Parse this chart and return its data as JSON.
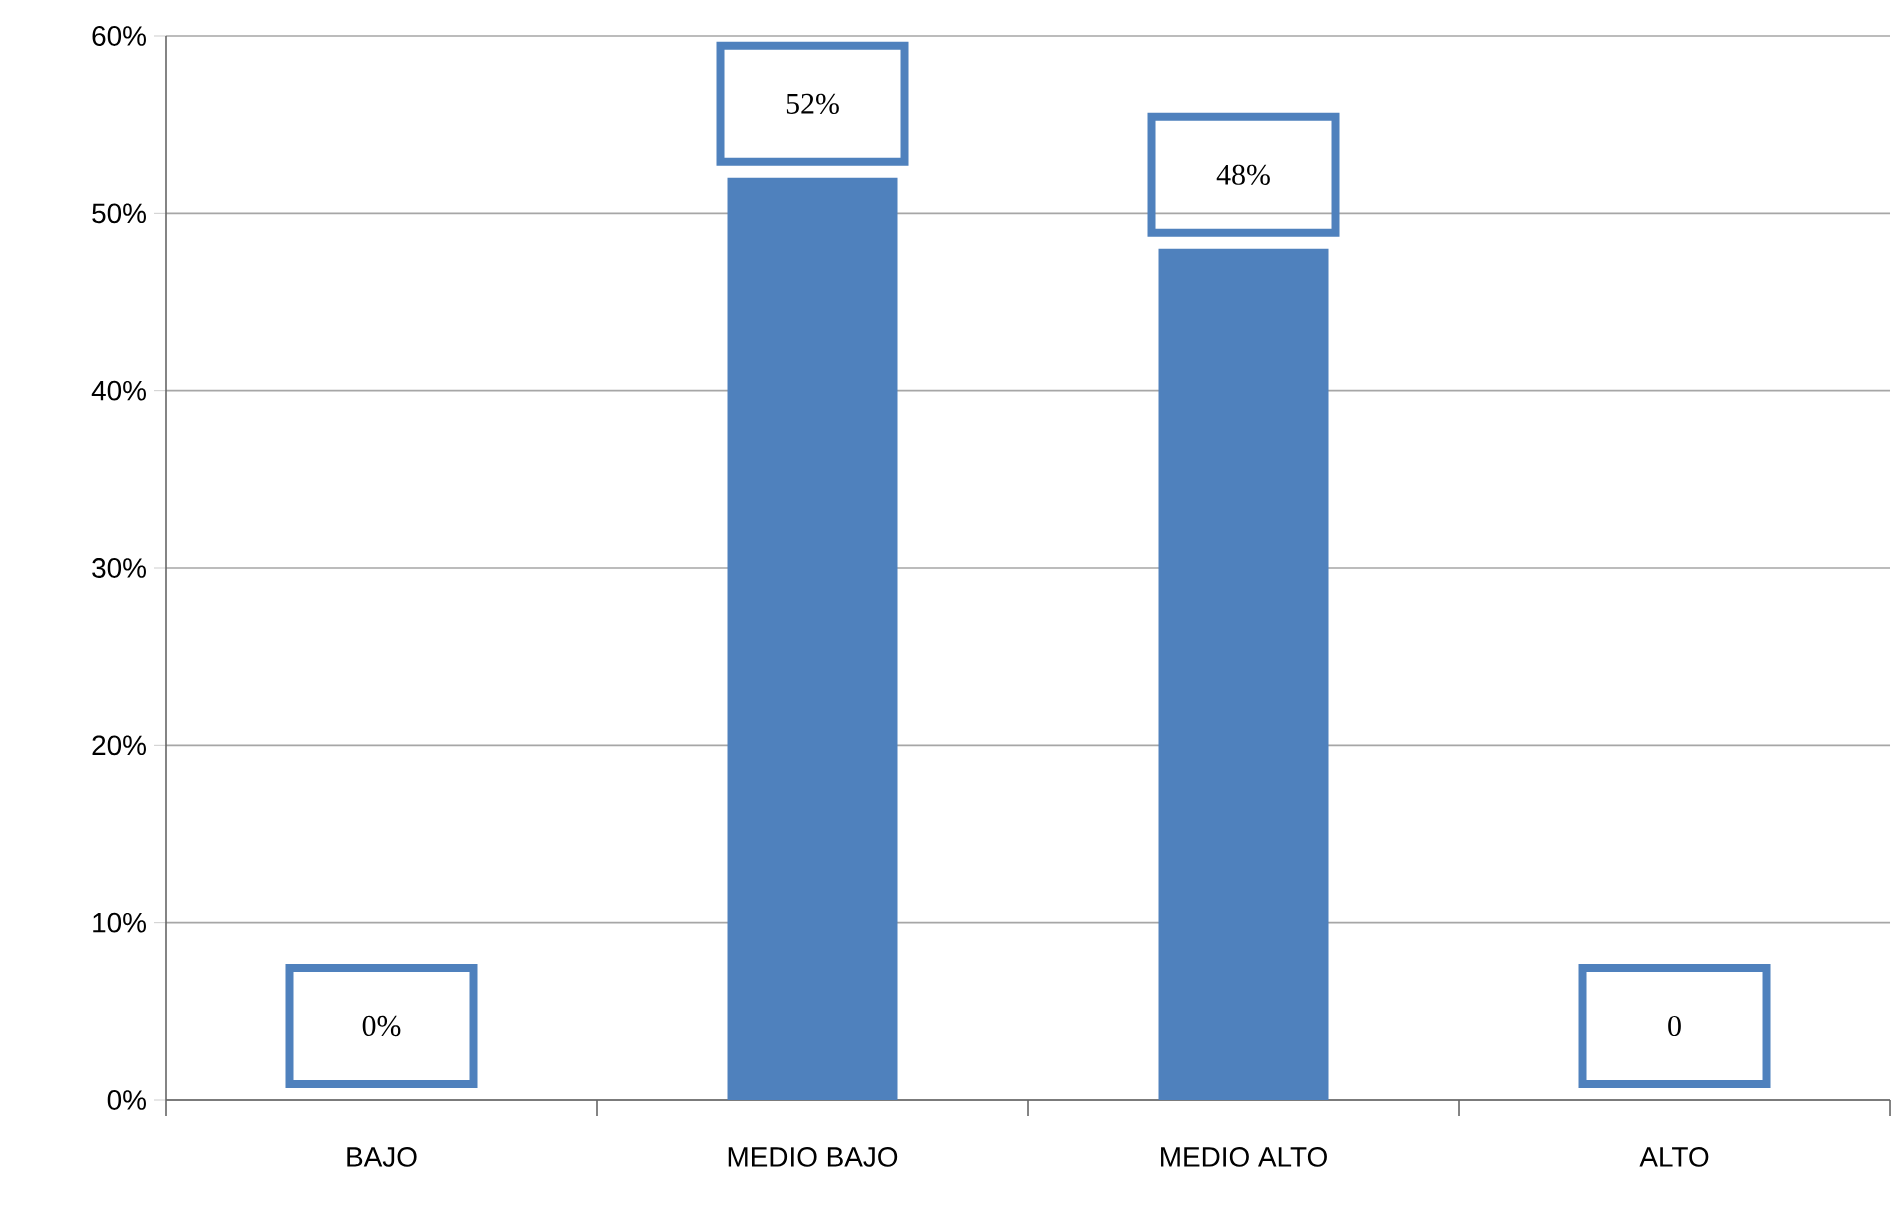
{
  "chart_data": {
    "type": "bar",
    "categories": [
      "BAJO",
      "MEDIO BAJO",
      "MEDIO ALTO",
      "ALTO"
    ],
    "values": [
      0,
      52,
      48,
      0
    ],
    "value_labels": [
      "0%",
      "52%",
      "48%",
      "0"
    ],
    "color": "#4f81bd",
    "ylim": [
      0,
      60
    ],
    "yticks": [
      {
        "value": 0,
        "label": "0%"
      },
      {
        "value": 10,
        "label": "10%"
      },
      {
        "value": 20,
        "label": "20%"
      },
      {
        "value": 30,
        "label": "30%"
      },
      {
        "value": 40,
        "label": "40%"
      },
      {
        "value": 50,
        "label": "50%"
      },
      {
        "value": 60,
        "label": "60%"
      }
    ],
    "grid": "y"
  }
}
